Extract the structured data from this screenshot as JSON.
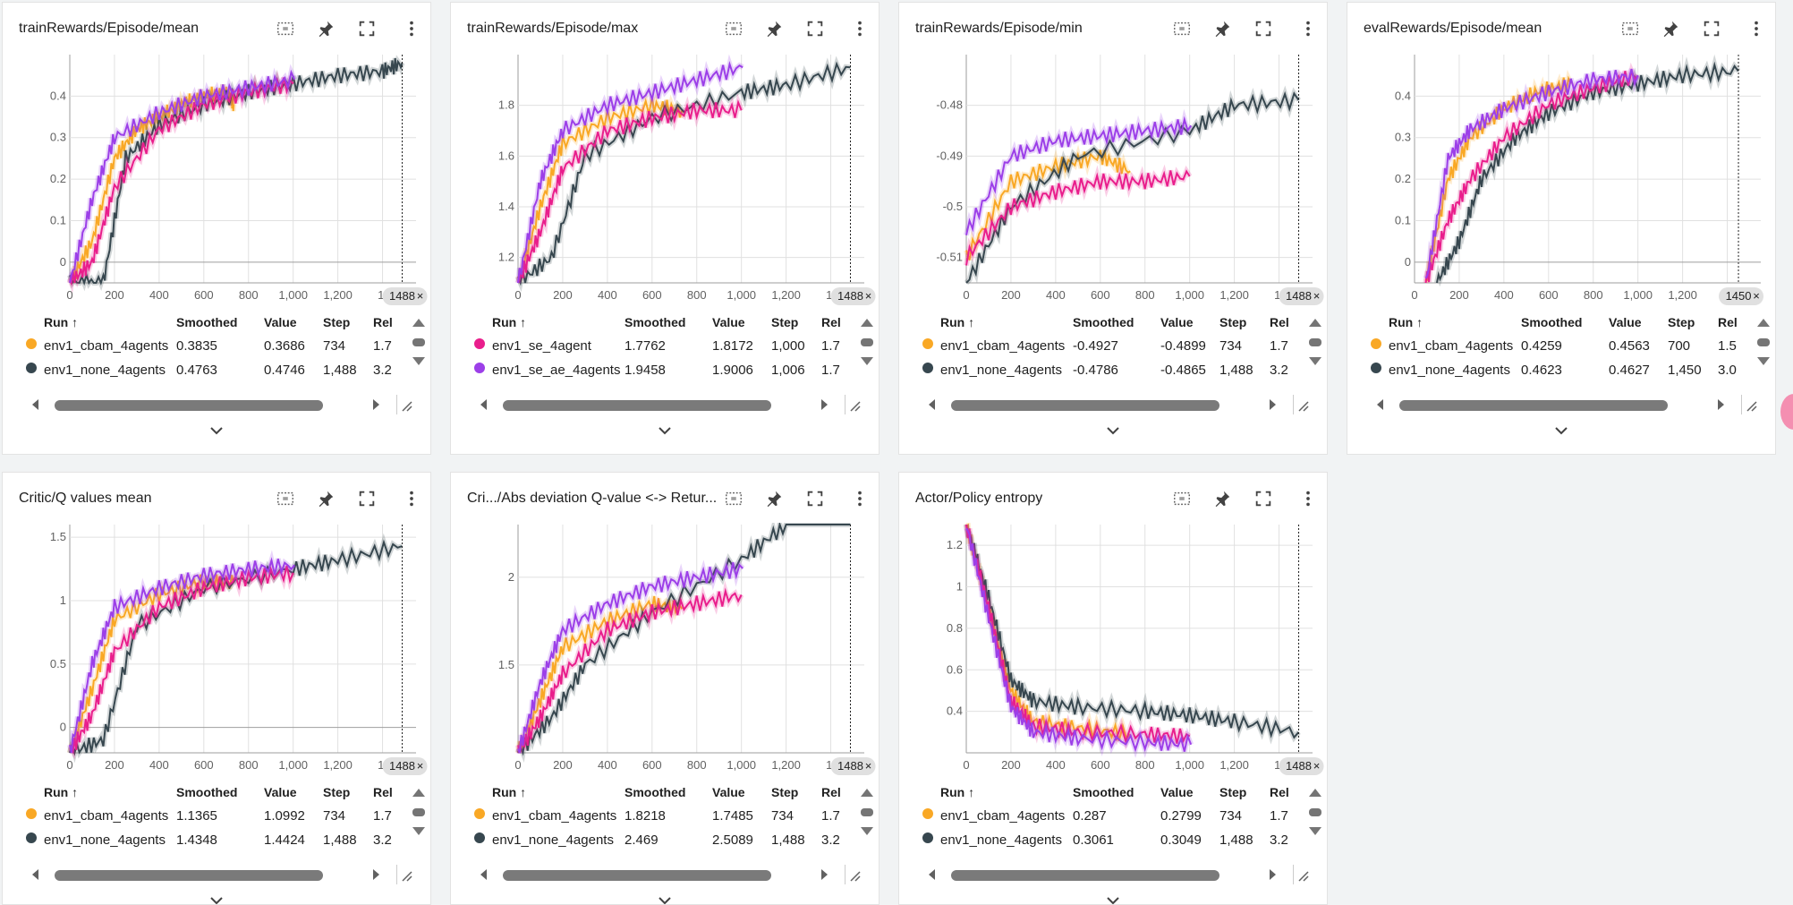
{
  "ui": {
    "run_header": "Run",
    "sort_arrow": "↑",
    "smoothed_header": "Smoothed",
    "value_header": "Value",
    "step_header": "Step",
    "rel_header": "Rel"
  },
  "colors": {
    "cbam": "#f9a825",
    "none": "#37474f",
    "se": "#e91e8c",
    "se_ae": "#9c3fe8"
  },
  "cards": [
    {
      "title": "trainRewards/Episode/mean",
      "marker": "1488",
      "yticks": [
        "0.4",
        "0.3",
        "0.2",
        "0.1",
        "0"
      ],
      "rows": [
        {
          "color": "#f9a825",
          "run": "env1_cbam_4agents",
          "smoothed": "0.3835",
          "value": "0.3686",
          "step": "734",
          "rel": "1.7"
        },
        {
          "color": "#37474f",
          "run": "env1_none_4agents",
          "smoothed": "0.4763",
          "value": "0.4746",
          "step": "1,488",
          "rel": "3.2"
        }
      ]
    },
    {
      "title": "trainRewards/Episode/max",
      "marker": "1488",
      "yticks": [
        "1.8",
        "1.6",
        "1.4",
        "1.2"
      ],
      "rows": [
        {
          "color": "#e91e8c",
          "run": "env1_se_4agent",
          "smoothed": "1.7762",
          "value": "1.8172",
          "step": "1,000",
          "rel": "1.7"
        },
        {
          "color": "#9c3fe8",
          "run": "env1_se_ae_4agents",
          "smoothed": "1.9458",
          "value": "1.9006",
          "step": "1,006",
          "rel": "1.7"
        }
      ]
    },
    {
      "title": "trainRewards/Episode/min",
      "marker": "1488",
      "yticks": [
        "-0.48",
        "-0.49",
        "-0.5",
        "-0.51"
      ],
      "rows": [
        {
          "color": "#f9a825",
          "run": "env1_cbam_4agents",
          "smoothed": "-0.4927",
          "value": "-0.4899",
          "step": "734",
          "rel": "1.7"
        },
        {
          "color": "#37474f",
          "run": "env1_none_4agents",
          "smoothed": "-0.4786",
          "value": "-0.4865",
          "step": "1,488",
          "rel": "3.2"
        }
      ]
    },
    {
      "title": "evalRewards/Episode/mean",
      "marker": "1450",
      "yticks": [
        "0.4",
        "0.3",
        "0.2",
        "0.1",
        "0"
      ],
      "rows": [
        {
          "color": "#f9a825",
          "run": "env1_cbam_4agents",
          "smoothed": "0.4259",
          "value": "0.4563",
          "step": "700",
          "rel": "1.5"
        },
        {
          "color": "#37474f",
          "run": "env1_none_4agents",
          "smoothed": "0.4623",
          "value": "0.4627",
          "step": "1,450",
          "rel": "3.0"
        }
      ]
    },
    {
      "title": "Critic/Q values mean",
      "marker": "1488",
      "yticks": [
        "1.5",
        "1",
        "0.5",
        "0"
      ],
      "rows": [
        {
          "color": "#f9a825",
          "run": "env1_cbam_4agents",
          "smoothed": "1.1365",
          "value": "1.0992",
          "step": "734",
          "rel": "1.7"
        },
        {
          "color": "#37474f",
          "run": "env1_none_4agents",
          "smoothed": "1.4348",
          "value": "1.4424",
          "step": "1,488",
          "rel": "3.2"
        }
      ]
    },
    {
      "title": "Cri.../Abs deviation Q-value <-> Retur...",
      "marker": "1488",
      "yticks": [
        "2",
        "1.5"
      ],
      "rows": [
        {
          "color": "#f9a825",
          "run": "env1_cbam_4agents",
          "smoothed": "1.8218",
          "value": "1.7485",
          "step": "734",
          "rel": "1.7"
        },
        {
          "color": "#37474f",
          "run": "env1_none_4agents",
          "smoothed": "2.469",
          "value": "2.5089",
          "step": "1,488",
          "rel": "3.2"
        }
      ]
    },
    {
      "title": "Actor/Policy entropy",
      "marker": "1488",
      "yticks": [
        "1.2",
        "1",
        "0.8",
        "0.6",
        "0.4"
      ],
      "rows": [
        {
          "color": "#f9a825",
          "run": "env1_cbam_4agents",
          "smoothed": "0.287",
          "value": "0.2799",
          "step": "734",
          "rel": "1.7"
        },
        {
          "color": "#37474f",
          "run": "env1_none_4agents",
          "smoothed": "0.3061",
          "value": "0.3049",
          "step": "1,488",
          "rel": "3.2"
        }
      ]
    }
  ],
  "xticks": [
    "0",
    "200",
    "400",
    "600",
    "800",
    "1,000",
    "1,200",
    "1,"
  ],
  "chart_data": [
    {
      "type": "line",
      "title": "trainRewards/Episode/mean",
      "ylim": [
        -0.05,
        0.5
      ],
      "series": [
        {
          "name": "env1_cbam_4agents",
          "x": [
            0,
            100,
            200,
            300,
            400,
            500,
            600,
            700,
            734
          ],
          "y": [
            -0.05,
            0.05,
            0.25,
            0.32,
            0.35,
            0.38,
            0.4,
            0.41,
            0.38
          ]
        },
        {
          "name": "env1_none_4agents",
          "x": [
            0,
            150,
            250,
            400,
            600,
            800,
            1000,
            1200,
            1400,
            1488
          ],
          "y": [
            -0.05,
            -0.05,
            0.25,
            0.33,
            0.38,
            0.41,
            0.43,
            0.45,
            0.46,
            0.48
          ]
        },
        {
          "name": "env1_se_4agent",
          "x": [
            0,
            100,
            200,
            400,
            600,
            800,
            1000
          ],
          "y": [
            -0.05,
            0.0,
            0.18,
            0.32,
            0.38,
            0.41,
            0.43
          ]
        },
        {
          "name": "env1_se_ae_4agents",
          "x": [
            0,
            100,
            200,
            400,
            600,
            800,
            1006
          ],
          "y": [
            -0.05,
            0.15,
            0.3,
            0.36,
            0.4,
            0.42,
            0.44
          ]
        }
      ]
    },
    {
      "type": "line",
      "title": "trainRewards/Episode/max",
      "ylim": [
        1.1,
        2.0
      ],
      "series": [
        {
          "name": "env1_cbam_4agents",
          "x": [
            0,
            100,
            200,
            400,
            600,
            734
          ],
          "y": [
            1.1,
            1.4,
            1.65,
            1.75,
            1.8,
            1.78
          ]
        },
        {
          "name": "env1_none_4agents",
          "x": [
            0,
            150,
            300,
            600,
            1000,
            1200,
            1488
          ],
          "y": [
            1.1,
            1.2,
            1.6,
            1.75,
            1.85,
            1.88,
            1.95
          ]
        },
        {
          "name": "env1_se_4agent",
          "x": [
            0,
            100,
            200,
            400,
            600,
            800,
            1000
          ],
          "y": [
            1.1,
            1.3,
            1.55,
            1.7,
            1.75,
            1.78,
            1.78
          ]
        },
        {
          "name": "env1_se_ae_4agents",
          "x": [
            0,
            100,
            200,
            400,
            600,
            800,
            1006
          ],
          "y": [
            1.1,
            1.5,
            1.7,
            1.8,
            1.85,
            1.9,
            1.95
          ]
        }
      ]
    },
    {
      "type": "line",
      "title": "trainRewards/Episode/min",
      "ylim": [
        -0.515,
        -0.47
      ],
      "series": [
        {
          "name": "env1_cbam_4agents",
          "x": [
            0,
            200,
            400,
            600,
            734
          ],
          "y": [
            -0.51,
            -0.495,
            -0.492,
            -0.49,
            -0.493
          ]
        },
        {
          "name": "env1_none_4agents",
          "x": [
            0,
            200,
            500,
            1000,
            1200,
            1488
          ],
          "y": [
            -0.515,
            -0.5,
            -0.49,
            -0.485,
            -0.48,
            -0.479
          ]
        },
        {
          "name": "env1_se_4agent",
          "x": [
            0,
            200,
            400,
            600,
            800,
            1000
          ],
          "y": [
            -0.51,
            -0.5,
            -0.497,
            -0.495,
            -0.495,
            -0.494
          ]
        },
        {
          "name": "env1_se_ae_4agents",
          "x": [
            0,
            200,
            400,
            600,
            800,
            1006
          ],
          "y": [
            -0.505,
            -0.49,
            -0.487,
            -0.486,
            -0.485,
            -0.484
          ]
        }
      ]
    },
    {
      "type": "line",
      "title": "evalRewards/Episode/mean",
      "ylim": [
        -0.05,
        0.5
      ],
      "series": [
        {
          "name": "env1_cbam_4agents",
          "x": [
            50,
            150,
            250,
            400,
            550,
            700
          ],
          "y": [
            -0.05,
            0.2,
            0.3,
            0.37,
            0.41,
            0.43
          ]
        },
        {
          "name": "env1_none_4agents",
          "x": [
            100,
            200,
            300,
            450,
            600,
            800,
            1000,
            1200,
            1450
          ],
          "y": [
            -0.05,
            0.05,
            0.2,
            0.3,
            0.36,
            0.41,
            0.43,
            0.45,
            0.46
          ]
        },
        {
          "name": "env1_se_4agent",
          "x": [
            50,
            150,
            250,
            400,
            600,
            800,
            1000
          ],
          "y": [
            -0.05,
            0.1,
            0.2,
            0.3,
            0.38,
            0.42,
            0.45
          ]
        },
        {
          "name": "env1_se_ae_4agents",
          "x": [
            50,
            150,
            250,
            400,
            600,
            800,
            1000
          ],
          "y": [
            -0.05,
            0.25,
            0.32,
            0.37,
            0.41,
            0.44,
            0.45
          ]
        }
      ]
    },
    {
      "type": "line",
      "title": "Critic/Q values mean",
      "ylim": [
        -0.2,
        1.6
      ],
      "series": [
        {
          "name": "env1_cbam_4agents",
          "x": [
            0,
            100,
            200,
            400,
            600,
            734
          ],
          "y": [
            -0.2,
            0.3,
            0.85,
            1.05,
            1.15,
            1.14
          ]
        },
        {
          "name": "env1_none_4agents",
          "x": [
            0,
            150,
            300,
            600,
            1000,
            1200,
            1488
          ],
          "y": [
            -0.2,
            -0.1,
            0.8,
            1.1,
            1.25,
            1.32,
            1.43
          ]
        },
        {
          "name": "env1_se_4agent",
          "x": [
            0,
            100,
            200,
            400,
            600,
            800,
            1000
          ],
          "y": [
            -0.2,
            0.1,
            0.6,
            0.95,
            1.1,
            1.18,
            1.22
          ]
        },
        {
          "name": "env1_se_ae_4agents",
          "x": [
            0,
            100,
            200,
            400,
            600,
            800,
            1006
          ],
          "y": [
            -0.2,
            0.5,
            0.95,
            1.1,
            1.2,
            1.25,
            1.28
          ]
        }
      ]
    },
    {
      "type": "line",
      "title": "Cri.../Abs deviation Q-value <-> Retur...",
      "ylim": [
        1.0,
        2.3
      ],
      "series": [
        {
          "name": "env1_cbam_4agents",
          "x": [
            0,
            100,
            200,
            400,
            600,
            734
          ],
          "y": [
            1.0,
            1.3,
            1.6,
            1.75,
            1.85,
            1.82
          ]
        },
        {
          "name": "env1_none_4agents",
          "x": [
            0,
            150,
            300,
            600,
            1000,
            1200,
            1488
          ],
          "y": [
            1.0,
            1.2,
            1.5,
            1.8,
            2.1,
            2.3,
            2.47
          ]
        },
        {
          "name": "env1_se_4agent",
          "x": [
            0,
            100,
            200,
            400,
            600,
            800,
            1000
          ],
          "y": [
            1.0,
            1.2,
            1.45,
            1.7,
            1.8,
            1.85,
            1.9
          ]
        },
        {
          "name": "env1_se_ae_4agents",
          "x": [
            0,
            100,
            200,
            400,
            600,
            800,
            1006
          ],
          "y": [
            1.0,
            1.4,
            1.7,
            1.85,
            1.95,
            2.0,
            2.05
          ]
        }
      ]
    },
    {
      "type": "line",
      "title": "Actor/Policy entropy",
      "ylim": [
        0.2,
        1.3
      ],
      "series": [
        {
          "name": "env1_cbam_4agents",
          "x": [
            0,
            100,
            200,
            300,
            500,
            734
          ],
          "y": [
            1.3,
            0.9,
            0.5,
            0.35,
            0.32,
            0.29
          ]
        },
        {
          "name": "env1_none_4agents",
          "x": [
            0,
            100,
            200,
            300,
            500,
            800,
            1000,
            1200,
            1488
          ],
          "y": [
            1.3,
            0.95,
            0.55,
            0.45,
            0.42,
            0.4,
            0.38,
            0.35,
            0.3
          ]
        },
        {
          "name": "env1_se_4agent",
          "x": [
            0,
            100,
            200,
            300,
            500,
            800,
            1000
          ],
          "y": [
            1.3,
            0.9,
            0.45,
            0.33,
            0.3,
            0.29,
            0.28
          ]
        },
        {
          "name": "env1_se_ae_4agents",
          "x": [
            0,
            100,
            200,
            300,
            500,
            800,
            1006
          ],
          "y": [
            1.3,
            0.85,
            0.42,
            0.3,
            0.27,
            0.25,
            0.24
          ]
        }
      ]
    }
  ]
}
